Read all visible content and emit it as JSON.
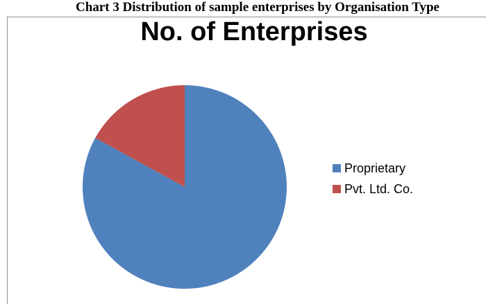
{
  "caption": "Chart 3 Distribution of sample enterprises by Organisation Type",
  "chart_data": {
    "type": "pie",
    "title": "No. of Enterprises",
    "categories": [
      "Proprietary",
      "Pvt. Ltd. Co."
    ],
    "values": [
      83,
      17
    ],
    "colors": [
      "#4f81bd",
      "#c0504d"
    ],
    "start_angle_deg": 0,
    "direction": "clockwise",
    "legend_position": "right"
  }
}
